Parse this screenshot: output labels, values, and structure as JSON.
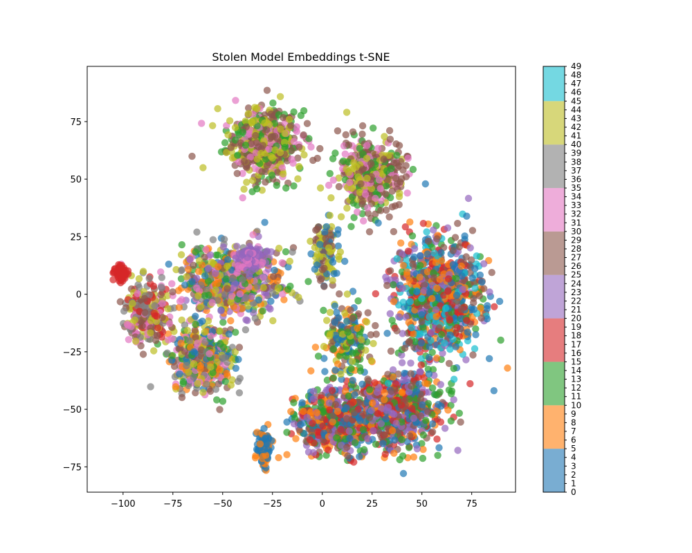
{
  "chart_data": {
    "type": "scatter",
    "title": "Stolen Model Embeddings t-SNE",
    "xlabel": "",
    "ylabel": "",
    "xlim": [
      -118,
      97
    ],
    "ylim": [
      -86,
      99
    ],
    "x_ticks": [
      -100,
      -75,
      -50,
      -25,
      0,
      25,
      50,
      75
    ],
    "y_ticks": [
      -75,
      -50,
      -25,
      0,
      25,
      50,
      75
    ],
    "grid": false,
    "point_alpha": 0.7,
    "colorbar": {
      "range": [
        0,
        49
      ],
      "ticks": [
        0,
        1,
        2,
        3,
        4,
        5,
        6,
        7,
        8,
        9,
        10,
        11,
        12,
        13,
        14,
        15,
        16,
        17,
        18,
        19,
        20,
        21,
        22,
        23,
        24,
        25,
        26,
        27,
        28,
        29,
        30,
        31,
        32,
        33,
        34,
        35,
        36,
        37,
        38,
        39,
        40,
        41,
        42,
        43,
        44,
        45,
        46,
        47,
        48,
        49
      ],
      "bands": [
        {
          "from": 0,
          "to": 5,
          "color": "#1f77b4"
        },
        {
          "from": 5,
          "to": 10,
          "color": "#ff7f0e"
        },
        {
          "from": 10,
          "to": 15,
          "color": "#2ca02c"
        },
        {
          "from": 15,
          "to": 20,
          "color": "#d62728"
        },
        {
          "from": 20,
          "to": 25,
          "color": "#9467bd"
        },
        {
          "from": 25,
          "to": 30,
          "color": "#8c564b"
        },
        {
          "from": 30,
          "to": 35,
          "color": "#e377c2"
        },
        {
          "from": 35,
          "to": 40,
          "color": "#7f7f7f"
        },
        {
          "from": 40,
          "to": 45,
          "color": "#bcbd22"
        },
        {
          "from": 45,
          "to": 49,
          "color": "#17becf"
        }
      ]
    },
    "clusters": [
      {
        "center": [
          -30,
          66
        ],
        "spread": [
          16,
          13
        ],
        "count": 620,
        "colors": [
          "#bcbd22",
          "#8c564b",
          "#2ca02c",
          "#e377c2",
          "#8c564b",
          "#bcbd22"
        ]
      },
      {
        "center": [
          25,
          52
        ],
        "spread": [
          15,
          14
        ],
        "count": 420,
        "colors": [
          "#8c564b",
          "#bcbd22",
          "#2ca02c",
          "#e377c2",
          "#8c564b"
        ]
      },
      {
        "center": [
          -45,
          5
        ],
        "spread": [
          22,
          14
        ],
        "count": 650,
        "colors": [
          "#9467bd",
          "#7f7f7f",
          "#e377c2",
          "#bcbd22",
          "#8c564b",
          "#1f77b4",
          "#ff7f0e",
          "#2ca02c"
        ]
      },
      {
        "center": [
          -36,
          16
        ],
        "spread": [
          6,
          5
        ],
        "count": 140,
        "colors": [
          "#9467bd",
          "#9467bd",
          "#e377c2"
        ]
      },
      {
        "center": [
          -60,
          -28
        ],
        "spread": [
          14,
          13
        ],
        "count": 420,
        "colors": [
          "#7f7f7f",
          "#8c564b",
          "#bcbd22",
          "#e377c2",
          "#2ca02c",
          "#1f77b4",
          "#ff7f0e"
        ]
      },
      {
        "center": [
          -88,
          -8
        ],
        "spread": [
          10,
          12
        ],
        "count": 260,
        "colors": [
          "#d62728",
          "#e377c2",
          "#8c564b",
          "#7f7f7f",
          "#bcbd22"
        ]
      },
      {
        "center": [
          -101,
          9
        ],
        "spread": [
          3,
          2.5
        ],
        "count": 70,
        "colors": [
          "#d62728"
        ]
      },
      {
        "center": [
          -29,
          -67
        ],
        "spread": [
          3,
          8
        ],
        "count": 110,
        "colors": [
          "#1f77b4",
          "#1f77b4",
          "#ff7f0e"
        ]
      },
      {
        "center": [
          8,
          -55
        ],
        "spread": [
          20,
          13
        ],
        "count": 620,
        "colors": [
          "#1f77b4",
          "#ff7f0e",
          "#2ca02c",
          "#d62728",
          "#8c564b",
          "#9467bd"
        ]
      },
      {
        "center": [
          40,
          -50
        ],
        "spread": [
          18,
          15
        ],
        "count": 500,
        "colors": [
          "#1f77b4",
          "#2ca02c",
          "#8c564b",
          "#ff7f0e",
          "#d62728",
          "#9467bd"
        ]
      },
      {
        "center": [
          58,
          -2
        ],
        "spread": [
          20,
          24
        ],
        "count": 900,
        "colors": [
          "#1f77b4",
          "#2ca02c",
          "#8c564b",
          "#ff7f0e",
          "#17becf",
          "#9467bd",
          "#d62728"
        ]
      },
      {
        "center": [
          12,
          -20
        ],
        "spread": [
          10,
          14
        ],
        "count": 200,
        "colors": [
          "#1f77b4",
          "#8c564b",
          "#2ca02c",
          "#ff7f0e",
          "#bcbd22"
        ]
      },
      {
        "center": [
          2,
          18
        ],
        "spread": [
          6,
          12
        ],
        "count": 110,
        "colors": [
          "#bcbd22",
          "#8c564b",
          "#1f77b4"
        ]
      }
    ]
  }
}
